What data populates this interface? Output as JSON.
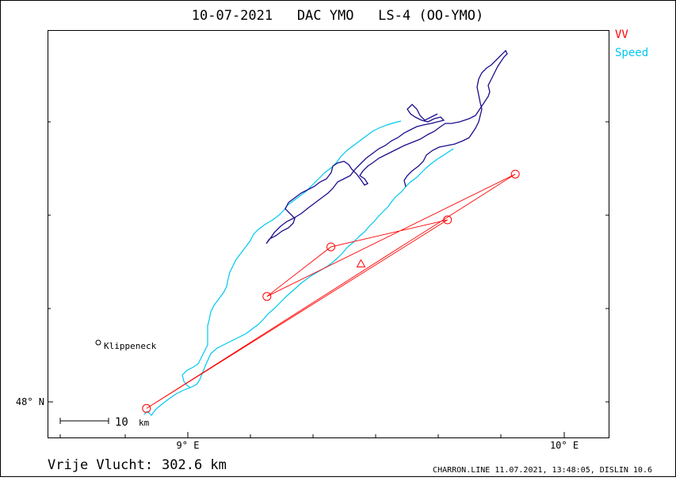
{
  "title": "10-07-2021   DAC YMO   LS-4 (OO-YMO)",
  "legend": [
    {
      "label": "VV",
      "color": "#ff0000"
    },
    {
      "label": "Speed",
      "color": "#00c8f0"
    }
  ],
  "axes": {
    "x_ticks": [
      "9° E",
      "10° E"
    ],
    "y_ticks": [
      "48° N"
    ]
  },
  "scale_bar": {
    "label": "10",
    "unit": "km"
  },
  "places": [
    {
      "name": "Klippeneck",
      "lon": 8.75,
      "lat": 48.105
    }
  ],
  "footer": {
    "distance_label": "Vrije Vlucht:",
    "distance_value": "302.6 km",
    "credit": "CHARRON.LINE 11.07.2021, 13:48:05, DISLIN 10.6"
  },
  "colors": {
    "vv": "#ff0000",
    "speed": "#00c8f0",
    "track": "#1a0d8c",
    "frame": "#000000"
  },
  "turnpoints": [
    {
      "lon": 8.89,
      "lat": 47.965
    },
    {
      "lon": 9.21,
      "lat": 48.565
    },
    {
      "lon": 9.38,
      "lat": 48.83
    },
    {
      "lon": 9.69,
      "lat": 48.975
    },
    {
      "lon": 9.87,
      "lat": 49.22
    }
  ],
  "triangle_marker": {
    "lon": 9.46,
    "lat": 48.74
  },
  "vv_path": [
    [
      8.89,
      47.965
    ],
    [
      9.87,
      49.22
    ],
    [
      9.21,
      48.565
    ],
    [
      9.38,
      48.83
    ],
    [
      9.69,
      48.975
    ],
    [
      8.89,
      47.965
    ]
  ]
}
